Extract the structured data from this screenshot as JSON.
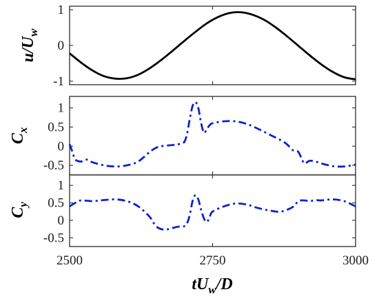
{
  "chart_data": [
    {
      "type": "line",
      "ylabel": "u/U",
      "ylabel_sub": "w",
      "ylim": [
        -1.1,
        1.1
      ],
      "yticks": [
        -1,
        0,
        1
      ],
      "ytick_labels": [
        "-1",
        "0",
        "1"
      ],
      "xlim": [
        2500,
        3000
      ],
      "show_xticklabels": false,
      "series": [
        {
          "style": "solid",
          "color": "#000000",
          "x": [
            2500,
            2520,
            2540,
            2560,
            2580,
            2600,
            2620,
            2640,
            2660,
            2680,
            2700,
            2720,
            2740,
            2760,
            2780,
            2800,
            2820,
            2840,
            2860,
            2880,
            2900,
            2920,
            2940,
            2960,
            2980,
            3000
          ],
          "y": [
            -0.22,
            -0.48,
            -0.7,
            -0.86,
            -0.93,
            -0.92,
            -0.82,
            -0.64,
            -0.41,
            -0.15,
            0.12,
            0.38,
            0.62,
            0.8,
            0.91,
            0.93,
            0.86,
            0.72,
            0.51,
            0.26,
            -0.01,
            -0.28,
            -0.53,
            -0.74,
            -0.89,
            -0.95
          ]
        }
      ]
    },
    {
      "type": "line",
      "ylabel": "C",
      "ylabel_sub": "x",
      "ylim": [
        -0.75,
        1.3
      ],
      "yticks": [
        -0.5,
        0,
        0.5,
        1
      ],
      "ytick_labels": [
        "-0.5",
        "0",
        "0.5",
        "1"
      ],
      "xlim": [
        2500,
        3000
      ],
      "show_xticklabels": false,
      "series": [
        {
          "style": "dashdot",
          "color": "#0a1fd6",
          "x": [
            2500,
            2505,
            2510,
            2520,
            2530,
            2540,
            2560,
            2580,
            2600,
            2620,
            2640,
            2650,
            2660,
            2680,
            2690,
            2700,
            2705,
            2710,
            2715,
            2720,
            2725,
            2730,
            2735,
            2740,
            2745,
            2750,
            2770,
            2790,
            2810,
            2830,
            2850,
            2870,
            2880,
            2890,
            2895,
            2900,
            2905,
            2910,
            2915,
            2920,
            2930,
            2940,
            2960,
            2980,
            3000
          ],
          "y": [
            0.05,
            -0.15,
            -0.35,
            -0.4,
            -0.35,
            -0.42,
            -0.5,
            -0.53,
            -0.5,
            -0.4,
            -0.15,
            -0.05,
            0.0,
            0.03,
            0.05,
            0.1,
            0.3,
            0.7,
            1.05,
            1.15,
            1.0,
            0.6,
            0.35,
            0.45,
            0.55,
            0.6,
            0.65,
            0.65,
            0.58,
            0.45,
            0.3,
            0.15,
            0.05,
            -0.1,
            -0.12,
            -0.15,
            -0.3,
            -0.45,
            -0.42,
            -0.38,
            -0.4,
            -0.45,
            -0.52,
            -0.53,
            -0.48
          ]
        }
      ]
    },
    {
      "type": "line",
      "ylabel": "C",
      "ylabel_sub": "y",
      "ylim": [
        -0.75,
        1.3
      ],
      "yticks": [
        -0.5,
        0,
        0.5,
        1
      ],
      "ytick_labels": [
        "-0.5",
        "0",
        "0.5",
        "1"
      ],
      "xlim": [
        2500,
        3000
      ],
      "xticks": [
        2500,
        2750,
        3000
      ],
      "xtick_labels": [
        "2500",
        "2750",
        "3000"
      ],
      "show_xticklabels": true,
      "xlabel": "tU",
      "xlabel_sub": "w",
      "xlabel_tail": "/D",
      "series": [
        {
          "style": "dashdot",
          "color": "#0a1fd6",
          "x": [
            2500,
            2510,
            2520,
            2540,
            2560,
            2580,
            2600,
            2620,
            2640,
            2650,
            2660,
            2670,
            2680,
            2690,
            2700,
            2705,
            2710,
            2715,
            2720,
            2725,
            2730,
            2735,
            2740,
            2745,
            2750,
            2770,
            2790,
            2810,
            2830,
            2850,
            2870,
            2890,
            2900,
            2910,
            2920,
            2930,
            2940,
            2960,
            2980,
            3000
          ],
          "y": [
            0.4,
            0.5,
            0.57,
            0.55,
            0.58,
            0.6,
            0.55,
            0.4,
            0.1,
            -0.15,
            -0.25,
            -0.26,
            -0.22,
            -0.18,
            -0.17,
            -0.1,
            0.15,
            0.55,
            0.72,
            0.6,
            0.3,
            0.05,
            -0.05,
            0.1,
            0.25,
            0.4,
            0.48,
            0.45,
            0.35,
            0.28,
            0.25,
            0.38,
            0.55,
            0.57,
            0.55,
            0.58,
            0.57,
            0.6,
            0.55,
            0.4
          ]
        }
      ]
    }
  ]
}
